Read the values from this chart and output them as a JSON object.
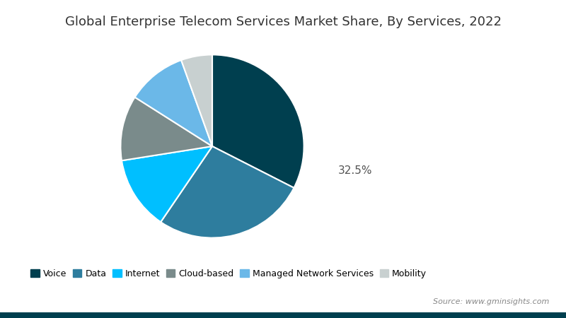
{
  "title": "Global Enterprise Telecom Services Market Share, By Services, 2022",
  "labels": [
    "Voice",
    "Data",
    "Internet",
    "Cloud-based",
    "Managed Network Services",
    "Mobility"
  ],
  "values": [
    32.5,
    27.0,
    13.0,
    11.5,
    10.5,
    5.5
  ],
  "colors": [
    "#003f4f",
    "#2e7d9e",
    "#00bfff",
    "#7a8b8b",
    "#6bb8e8",
    "#c8d0d0"
  ],
  "annotation_label": "32.5%",
  "source_text": "Source: www.gminsights.com",
  "legend_labels": [
    "Voice",
    "Data",
    "Internet",
    "Cloud-based",
    "Managed Network Services",
    "Mobility"
  ],
  "background_color": "#ffffff",
  "border_color": "#003f4f",
  "startangle": 90,
  "title_fontsize": 13,
  "wedge_linewidth": 1.5
}
